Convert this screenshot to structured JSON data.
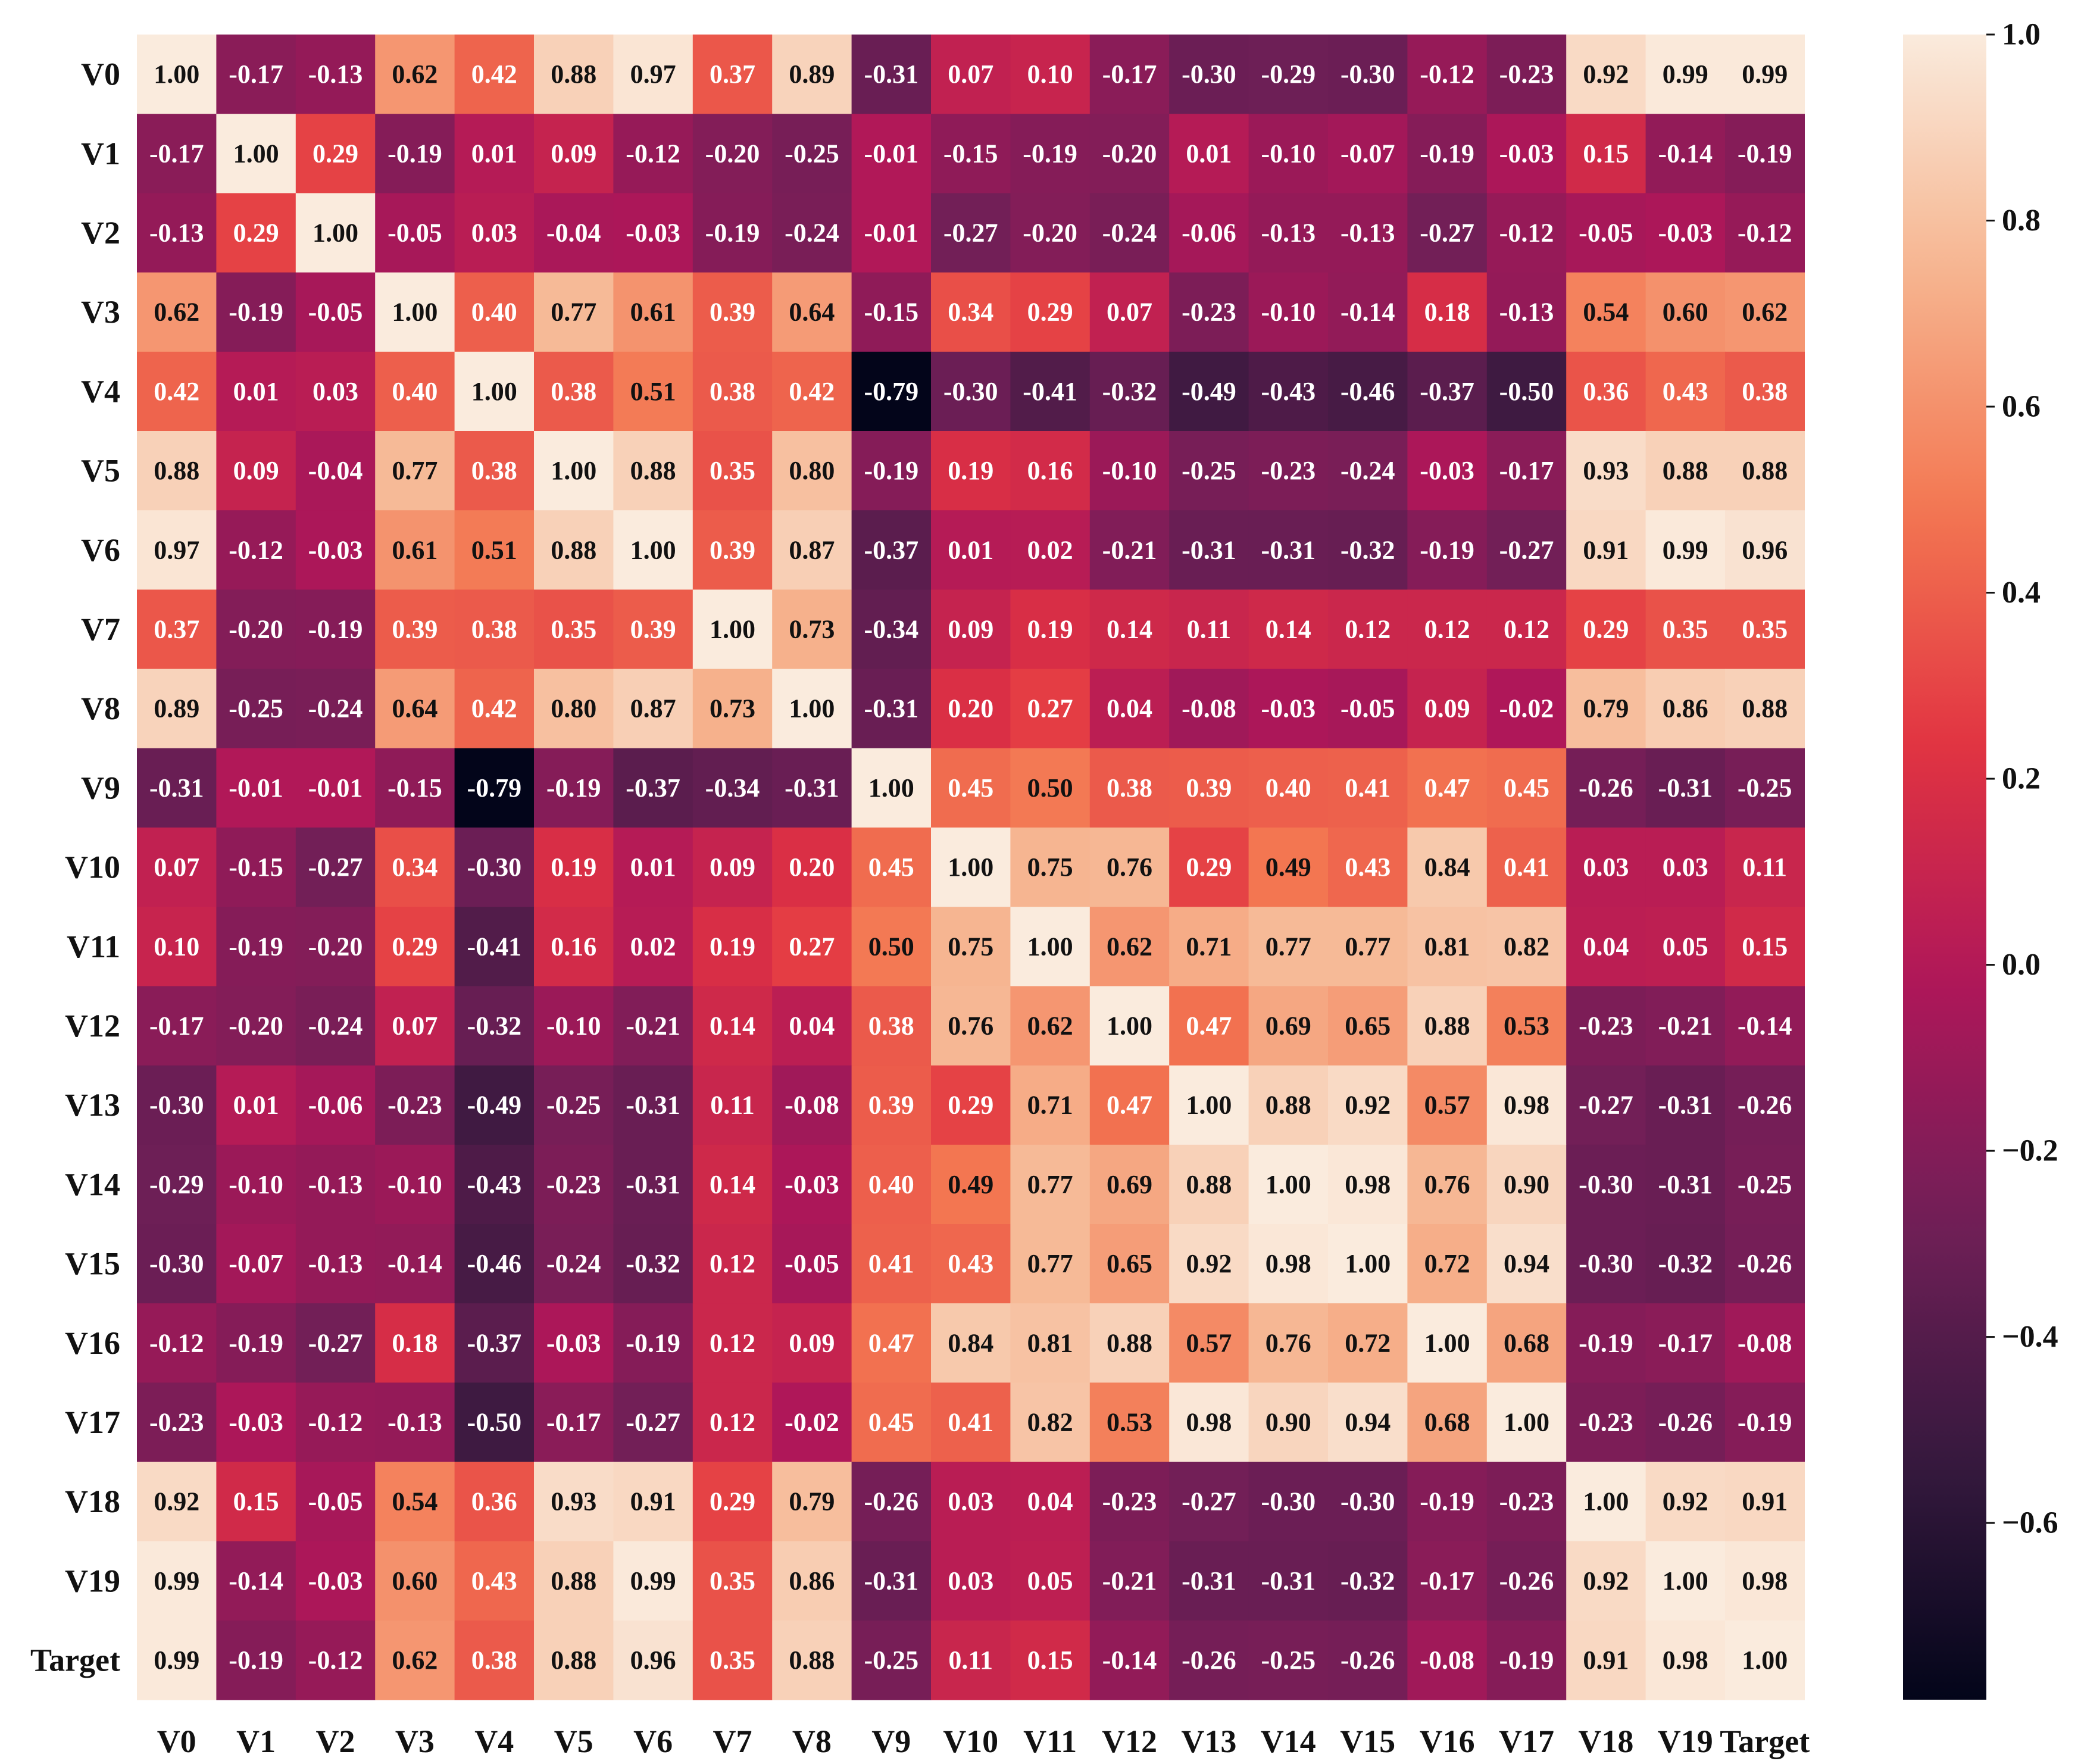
{
  "chart_data": {
    "type": "heatmap",
    "title": "",
    "xlabel": "",
    "ylabel": "",
    "labels": [
      "V0",
      "V1",
      "V2",
      "V3",
      "V4",
      "V5",
      "V6",
      "V7",
      "V8",
      "V9",
      "V10",
      "V11",
      "V12",
      "V13",
      "V14",
      "V15",
      "V16",
      "V17",
      "V18",
      "V19",
      "Target"
    ],
    "matrix": [
      [
        1.0,
        -0.17,
        -0.13,
        0.62,
        0.42,
        0.88,
        0.97,
        0.37,
        0.89,
        -0.31,
        0.07,
        0.1,
        -0.17,
        -0.3,
        -0.29,
        -0.3,
        -0.12,
        -0.23,
        0.92,
        0.99,
        0.99
      ],
      [
        -0.17,
        1.0,
        0.29,
        -0.19,
        0.01,
        0.09,
        -0.12,
        -0.2,
        -0.25,
        -0.01,
        -0.15,
        -0.19,
        -0.2,
        0.01,
        -0.1,
        -0.07,
        -0.19,
        -0.03,
        0.15,
        -0.14,
        -0.19
      ],
      [
        -0.13,
        0.29,
        1.0,
        -0.05,
        0.03,
        -0.04,
        -0.03,
        -0.19,
        -0.24,
        -0.01,
        -0.27,
        -0.2,
        -0.24,
        -0.06,
        -0.13,
        -0.13,
        -0.27,
        -0.12,
        -0.05,
        -0.03,
        -0.12
      ],
      [
        0.62,
        -0.19,
        -0.05,
        1.0,
        0.4,
        0.77,
        0.61,
        0.39,
        0.64,
        -0.15,
        0.34,
        0.29,
        0.07,
        -0.23,
        -0.1,
        -0.14,
        0.18,
        -0.13,
        0.54,
        0.6,
        0.62
      ],
      [
        0.42,
        0.01,
        0.03,
        0.4,
        1.0,
        0.38,
        0.51,
        0.38,
        0.42,
        -0.79,
        -0.3,
        -0.41,
        -0.32,
        -0.49,
        -0.43,
        -0.46,
        -0.37,
        -0.5,
        0.36,
        0.43,
        0.38
      ],
      [
        0.88,
        0.09,
        -0.04,
        0.77,
        0.38,
        1.0,
        0.88,
        0.35,
        0.8,
        -0.19,
        0.19,
        0.16,
        -0.1,
        -0.25,
        -0.23,
        -0.24,
        -0.03,
        -0.17,
        0.93,
        0.88,
        0.88
      ],
      [
        0.97,
        -0.12,
        -0.03,
        0.61,
        0.51,
        0.88,
        1.0,
        0.39,
        0.87,
        -0.37,
        0.01,
        0.02,
        -0.21,
        -0.31,
        -0.31,
        -0.32,
        -0.19,
        -0.27,
        0.91,
        0.99,
        0.96
      ],
      [
        0.37,
        -0.2,
        -0.19,
        0.39,
        0.38,
        0.35,
        0.39,
        1.0,
        0.73,
        -0.34,
        0.09,
        0.19,
        0.14,
        0.11,
        0.14,
        0.12,
        0.12,
        0.12,
        0.29,
        0.35,
        0.35
      ],
      [
        0.89,
        -0.25,
        -0.24,
        0.64,
        0.42,
        0.8,
        0.87,
        0.73,
        1.0,
        -0.31,
        0.2,
        0.27,
        0.04,
        -0.08,
        -0.03,
        -0.05,
        0.09,
        -0.02,
        0.79,
        0.86,
        0.88
      ],
      [
        -0.31,
        -0.01,
        -0.01,
        -0.15,
        -0.79,
        -0.19,
        -0.37,
        -0.34,
        -0.31,
        1.0,
        0.45,
        0.5,
        0.38,
        0.39,
        0.4,
        0.41,
        0.47,
        0.45,
        -0.26,
        -0.31,
        -0.25
      ],
      [
        0.07,
        -0.15,
        -0.27,
        0.34,
        -0.3,
        0.19,
        0.01,
        0.09,
        0.2,
        0.45,
        1.0,
        0.75,
        0.76,
        0.29,
        0.49,
        0.43,
        0.84,
        0.41,
        0.03,
        0.03,
        0.11
      ],
      [
        0.1,
        -0.19,
        -0.2,
        0.29,
        -0.41,
        0.16,
        0.02,
        0.19,
        0.27,
        0.5,
        0.75,
        1.0,
        0.62,
        0.71,
        0.77,
        0.77,
        0.81,
        0.82,
        0.04,
        0.05,
        0.15
      ],
      [
        -0.17,
        -0.2,
        -0.24,
        0.07,
        -0.32,
        -0.1,
        -0.21,
        0.14,
        0.04,
        0.38,
        0.76,
        0.62,
        1.0,
        0.47,
        0.69,
        0.65,
        0.88,
        0.53,
        -0.23,
        -0.21,
        -0.14
      ],
      [
        -0.3,
        0.01,
        -0.06,
        -0.23,
        -0.49,
        -0.25,
        -0.31,
        0.11,
        -0.08,
        0.39,
        0.29,
        0.71,
        0.47,
        1.0,
        0.88,
        0.92,
        0.57,
        0.98,
        -0.27,
        -0.31,
        -0.26
      ],
      [
        -0.29,
        -0.1,
        -0.13,
        -0.1,
        -0.43,
        -0.23,
        -0.31,
        0.14,
        -0.03,
        0.4,
        0.49,
        0.77,
        0.69,
        0.88,
        1.0,
        0.98,
        0.76,
        0.9,
        -0.3,
        -0.31,
        -0.25
      ],
      [
        -0.3,
        -0.07,
        -0.13,
        -0.14,
        -0.46,
        -0.24,
        -0.32,
        0.12,
        -0.05,
        0.41,
        0.43,
        0.77,
        0.65,
        0.92,
        0.98,
        1.0,
        0.72,
        0.94,
        -0.3,
        -0.32,
        -0.26
      ],
      [
        -0.12,
        -0.19,
        -0.27,
        0.18,
        -0.37,
        -0.03,
        -0.19,
        0.12,
        0.09,
        0.47,
        0.84,
        0.81,
        0.88,
        0.57,
        0.76,
        0.72,
        1.0,
        0.68,
        -0.19,
        -0.17,
        -0.08
      ],
      [
        -0.23,
        -0.03,
        -0.12,
        -0.13,
        -0.5,
        -0.17,
        -0.27,
        0.12,
        -0.02,
        0.45,
        0.41,
        0.82,
        0.53,
        0.98,
        0.9,
        0.94,
        0.68,
        1.0,
        -0.23,
        -0.26,
        -0.19
      ],
      [
        0.92,
        0.15,
        -0.05,
        0.54,
        0.36,
        0.93,
        0.91,
        0.29,
        0.79,
        -0.26,
        0.03,
        0.04,
        -0.23,
        -0.27,
        -0.3,
        -0.3,
        -0.19,
        -0.23,
        1.0,
        0.92,
        0.91
      ],
      [
        0.99,
        -0.14,
        -0.03,
        0.6,
        0.43,
        0.88,
        0.99,
        0.35,
        0.86,
        -0.31,
        0.03,
        0.05,
        -0.21,
        -0.31,
        -0.31,
        -0.32,
        -0.17,
        -0.26,
        0.92,
        1.0,
        0.98
      ],
      [
        0.99,
        -0.19,
        -0.12,
        0.62,
        0.38,
        0.88,
        0.96,
        0.35,
        0.88,
        -0.25,
        0.11,
        0.15,
        -0.14,
        -0.26,
        -0.25,
        -0.26,
        -0.08,
        -0.19,
        0.91,
        0.98,
        1.0
      ]
    ],
    "value_format": "0.00",
    "annotations": true,
    "colormap": "rocket",
    "colormap_stops": [
      "#03051a",
      "#36193e",
      "#701f57",
      "#ae1759",
      "#e13342",
      "#f37651",
      "#f6b48f",
      "#faebdd"
    ],
    "vmin": -0.79,
    "vmax": 1.0,
    "colorbar": {
      "placement": "right",
      "ticks": [
        1.0,
        0.8,
        0.6,
        0.4,
        0.2,
        0.0,
        -0.2,
        -0.4,
        -0.6
      ],
      "tick_labels": [
        "1.0",
        "0.8",
        "0.6",
        "0.4",
        "0.2",
        "0.0",
        "−0.2",
        "−0.4",
        "−0.6"
      ]
    },
    "grid": false,
    "legend": "none"
  }
}
